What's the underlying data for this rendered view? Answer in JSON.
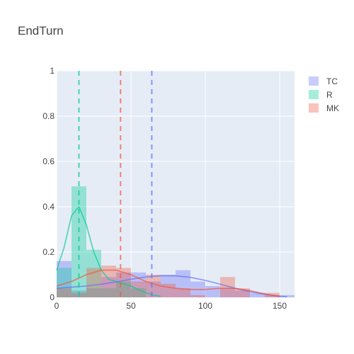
{
  "chart_data": {
    "type": "histogram",
    "title": "EndTurn",
    "xlim": [
      0,
      160
    ],
    "ylim": [
      0,
      1
    ],
    "x_ticks": [
      0,
      50,
      100,
      150
    ],
    "y_ticks": [
      0,
      0.2,
      0.4,
      0.6,
      0.8,
      1
    ],
    "y_tick_labels": [
      "0",
      "0.2",
      "0.4",
      "0.6",
      "0.8",
      "1"
    ],
    "grid": true,
    "legend_position": "top-right",
    "series": [
      {
        "name": "TC",
        "color": "#636efa",
        "bins": [
          [
            0,
            10,
            0.16
          ],
          [
            10,
            20,
            0.03
          ],
          [
            20,
            30,
            0.04
          ],
          [
            30,
            40,
            0.09
          ],
          [
            40,
            50,
            0.11
          ],
          [
            50,
            60,
            0.11
          ],
          [
            60,
            70,
            0.07
          ],
          [
            70,
            80,
            0.1
          ],
          [
            80,
            90,
            0.12
          ],
          [
            90,
            100,
            0.07
          ],
          [
            100,
            110,
            0.05
          ],
          [
            110,
            120,
            0.04
          ],
          [
            120,
            130,
            0.03
          ],
          [
            130,
            140,
            0.02
          ],
          [
            140,
            150,
            0.01
          ],
          [
            150,
            160,
            0.01
          ]
        ],
        "kde": [
          [
            0,
            0.04
          ],
          [
            10,
            0.045
          ],
          [
            20,
            0.05
          ],
          [
            30,
            0.058
          ],
          [
            40,
            0.068
          ],
          [
            50,
            0.08
          ],
          [
            60,
            0.09
          ],
          [
            70,
            0.095
          ],
          [
            80,
            0.095
          ],
          [
            90,
            0.088
          ],
          [
            100,
            0.075
          ],
          [
            110,
            0.058
          ],
          [
            120,
            0.04
          ],
          [
            130,
            0.025
          ],
          [
            140,
            0.013
          ],
          [
            150,
            0.005
          ],
          [
            155,
            0.003
          ]
        ],
        "mean": 64
      },
      {
        "name": "R",
        "color": "#00cc96",
        "bins": [
          [
            0,
            10,
            0.13
          ],
          [
            10,
            20,
            0.49
          ],
          [
            20,
            30,
            0.21
          ],
          [
            30,
            40,
            0.04
          ],
          [
            40,
            50,
            0.07
          ],
          [
            50,
            60,
            0.04
          ]
        ],
        "kde": [
          [
            0,
            0.12
          ],
          [
            5,
            0.22
          ],
          [
            10,
            0.36
          ],
          [
            15,
            0.4
          ],
          [
            20,
            0.32
          ],
          [
            25,
            0.2
          ],
          [
            30,
            0.12
          ],
          [
            35,
            0.08
          ],
          [
            40,
            0.07
          ],
          [
            45,
            0.06
          ],
          [
            50,
            0.05
          ],
          [
            55,
            0.035
          ],
          [
            60,
            0.02
          ],
          [
            65,
            0.01
          ],
          [
            70,
            0.005
          ]
        ],
        "mean": 15
      },
      {
        "name": "MK",
        "color": "#ef553b",
        "bins": [
          [
            0,
            10,
            0.04
          ],
          [
            10,
            20,
            0.02
          ],
          [
            20,
            30,
            0.13
          ],
          [
            30,
            40,
            0.14
          ],
          [
            40,
            50,
            0.13
          ],
          [
            50,
            60,
            0.07
          ],
          [
            60,
            70,
            0.1
          ],
          [
            70,
            80,
            0.06
          ],
          [
            80,
            90,
            0.04
          ],
          [
            90,
            100,
            0.01
          ],
          [
            110,
            120,
            0.09
          ],
          [
            120,
            130,
            0.04
          ],
          [
            140,
            150,
            0.02
          ]
        ],
        "kde": [
          [
            0,
            0.05
          ],
          [
            10,
            0.07
          ],
          [
            20,
            0.1
          ],
          [
            30,
            0.12
          ],
          [
            40,
            0.12
          ],
          [
            50,
            0.1
          ],
          [
            60,
            0.07
          ],
          [
            70,
            0.05
          ],
          [
            80,
            0.04
          ],
          [
            90,
            0.035
          ],
          [
            100,
            0.035
          ],
          [
            110,
            0.04
          ],
          [
            120,
            0.04
          ],
          [
            130,
            0.03
          ],
          [
            140,
            0.015
          ],
          [
            150,
            0.005
          ]
        ],
        "mean": 43
      }
    ]
  }
}
